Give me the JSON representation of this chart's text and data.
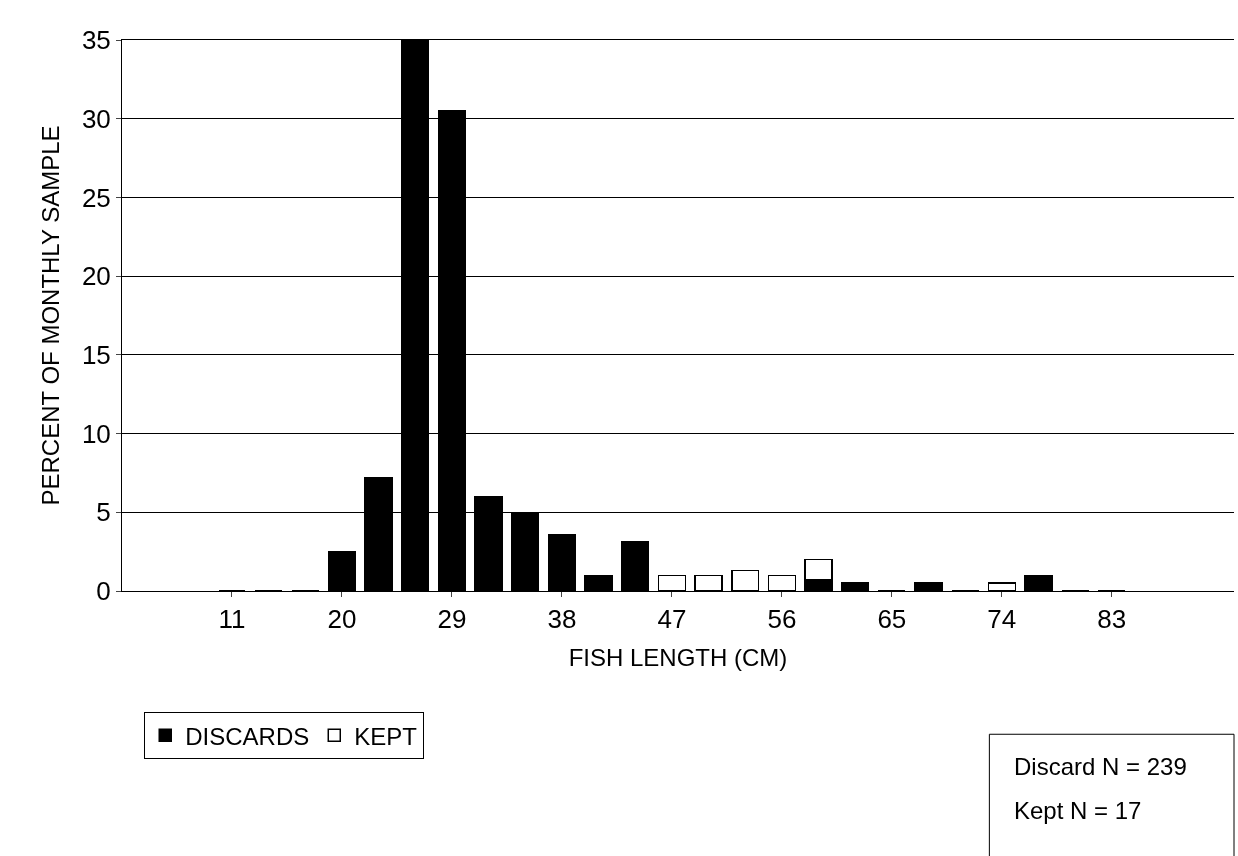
{
  "chart_data": {
    "type": "bar",
    "stacked": true,
    "xlabel": "FISH LENGTH (CM)",
    "ylabel": "PERCENT OF MONTHLY SAMPLE",
    "x": [
      11,
      14,
      17,
      20,
      23,
      26,
      29,
      32,
      35,
      38,
      41,
      44,
      47,
      50,
      53,
      56,
      59,
      62,
      65,
      68,
      71,
      74,
      77,
      80,
      83
    ],
    "series": [
      {
        "name": "DISCARDS",
        "color": "#000000",
        "values": [
          0,
          0,
          0,
          2.5,
          7.2,
          35,
          30.5,
          6,
          5,
          3.6,
          1,
          3.1,
          0,
          0,
          0,
          0,
          0.7,
          0.5,
          0,
          0.5,
          0,
          0,
          1,
          0,
          0
        ]
      },
      {
        "name": "KEPT",
        "color": "#ffffff",
        "values": [
          null,
          null,
          null,
          null,
          null,
          null,
          null,
          null,
          null,
          null,
          null,
          null,
          1,
          1,
          1.3,
          1,
          1.3,
          null,
          null,
          null,
          null,
          0.5,
          null,
          null,
          null
        ]
      }
    ],
    "xlim": [
      2,
      93
    ],
    "xticks": [
      11,
      20,
      29,
      38,
      47,
      56,
      65,
      74,
      83
    ],
    "ylim": [
      0,
      35
    ],
    "yticks": [
      0,
      5,
      10,
      15,
      20,
      25,
      30,
      35
    ],
    "grid": "y",
    "legend": "bottom left",
    "annotations": [
      "Discard N = 239",
      "Kept N = 17"
    ]
  }
}
